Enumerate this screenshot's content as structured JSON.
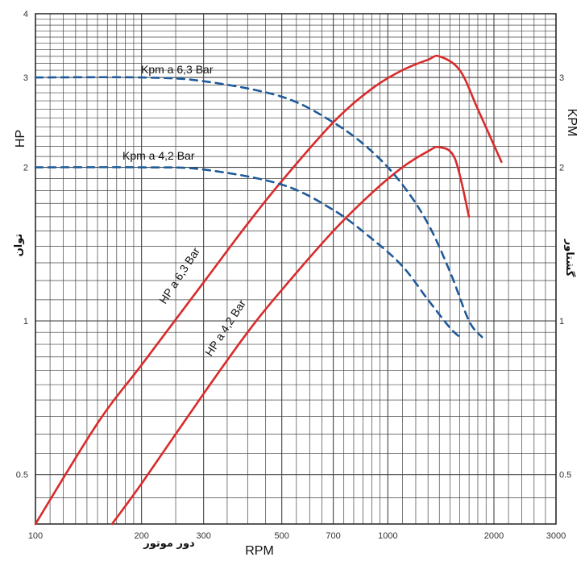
{
  "chart_data": {
    "type": "line",
    "x_scale": "log",
    "y_scale": "log",
    "xlim": [
      100,
      3000
    ],
    "ylim": [
      0.4,
      4
    ],
    "grid": true,
    "x_ticks": [
      {
        "value": 100,
        "label": "100"
      },
      {
        "value": 200,
        "label": "200"
      },
      {
        "value": 300,
        "label": "300"
      },
      {
        "value": 500,
        "label": "500"
      },
      {
        "value": 700,
        "label": "700"
      },
      {
        "value": 1000,
        "label": "1000"
      },
      {
        "value": 2000,
        "label": "2000"
      },
      {
        "value": 3000,
        "label": "3000"
      }
    ],
    "y_ticks_left": [
      {
        "value": 0.5,
        "label": "0.5"
      },
      {
        "value": 1,
        "label": "1"
      },
      {
        "value": 2,
        "label": "2"
      },
      {
        "value": 3,
        "label": "3"
      },
      {
        "value": 4,
        "label": "4"
      }
    ],
    "y_ticks_right": [
      {
        "value": 0.5,
        "label": "0.5"
      },
      {
        "value": 1,
        "label": "1"
      },
      {
        "value": 2,
        "label": "2"
      },
      {
        "value": 3,
        "label": "3"
      }
    ],
    "xlabel": "RPM",
    "xlabel_fa": "دور موتور",
    "ylabel_left": "HP",
    "ylabel_left_fa": "توان",
    "ylabel_right": "KPM",
    "ylabel_right_fa": "گشتاور",
    "colors": {
      "hp": "#d92b2b",
      "kpm": "#1f5a99",
      "grid": "#444444"
    },
    "series": [
      {
        "name": "HP a 6,3 Bar",
        "style": "solid",
        "x": [
          100,
          150,
          200,
          300,
          400,
          500,
          700,
          900,
          1100,
          1300,
          1400,
          1600,
          1800,
          2100
        ],
        "y": [
          0.4,
          0.63,
          0.82,
          1.19,
          1.55,
          1.88,
          2.45,
          2.85,
          3.1,
          3.25,
          3.3,
          3.1,
          2.6,
          2.05
        ]
      },
      {
        "name": "HP a 4,2 Bar",
        "style": "solid",
        "x": [
          165,
          200,
          300,
          400,
          500,
          700,
          900,
          1100,
          1300,
          1400,
          1550,
          1700
        ],
        "y": [
          0.4,
          0.48,
          0.72,
          0.95,
          1.15,
          1.5,
          1.78,
          2.0,
          2.15,
          2.19,
          2.08,
          1.6
        ]
      },
      {
        "name": "Kpm a 6,3 Bar",
        "style": "dashed",
        "x": [
          100,
          200,
          300,
          500,
          700,
          900,
          1100,
          1300,
          1500,
          1700,
          1850
        ],
        "y": [
          3.0,
          3.0,
          2.95,
          2.75,
          2.45,
          2.15,
          1.85,
          1.55,
          1.25,
          1.0,
          0.93
        ]
      },
      {
        "name": "Kpm a 4,2 Bar",
        "style": "dashed",
        "x": [
          100,
          200,
          300,
          500,
          700,
          900,
          1100,
          1300,
          1500,
          1600
        ],
        "y": [
          2.0,
          2.0,
          1.98,
          1.85,
          1.65,
          1.45,
          1.28,
          1.1,
          0.97,
          0.93
        ]
      }
    ]
  }
}
